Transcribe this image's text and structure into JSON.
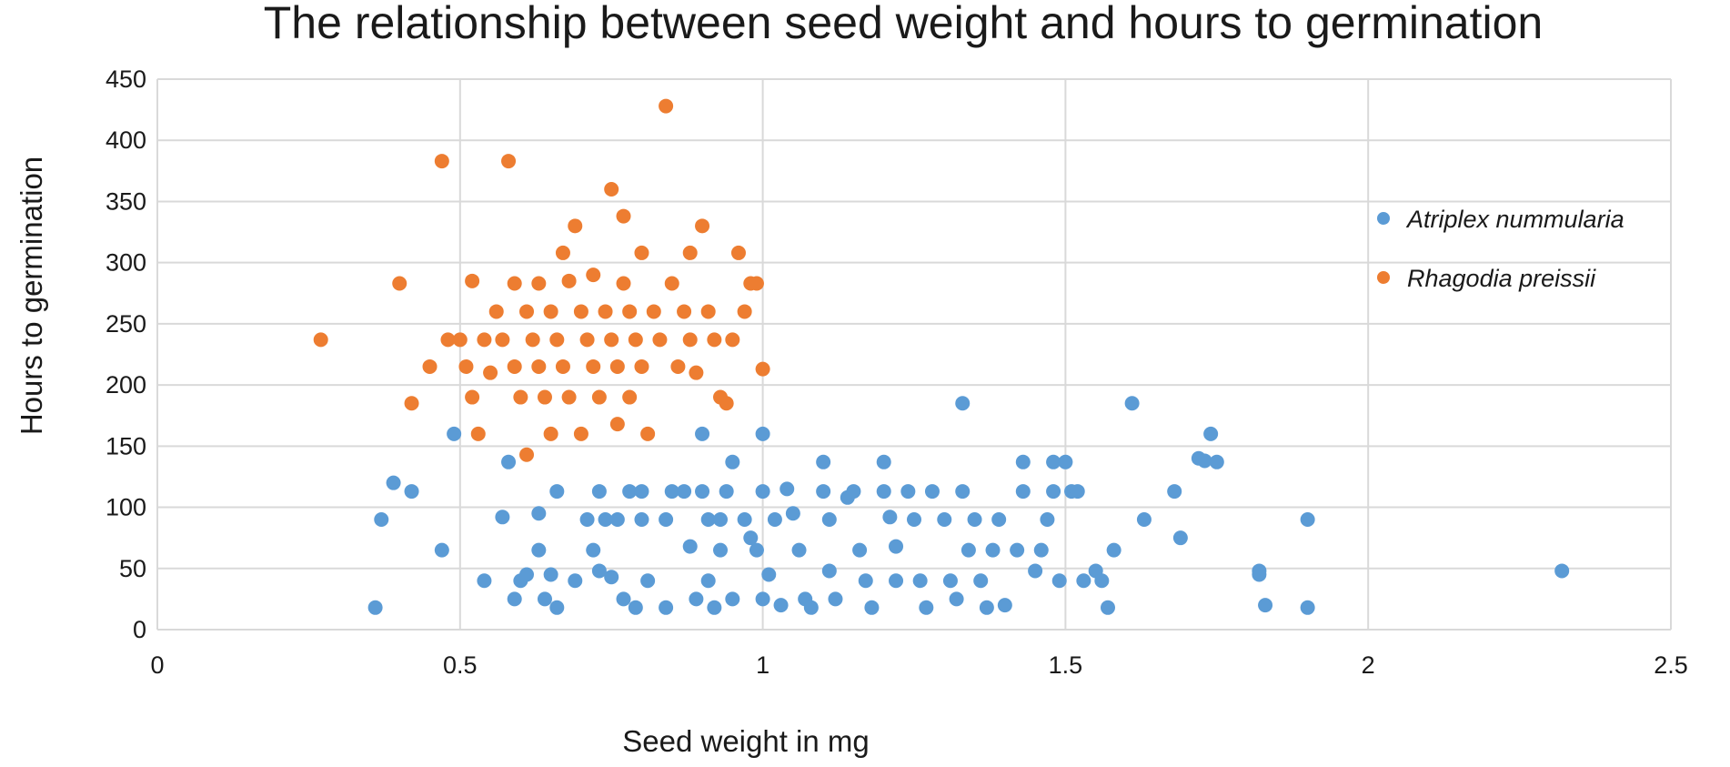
{
  "chart_data": {
    "type": "scatter",
    "title": "The relationship between seed weight and hours to germination",
    "xlabel": "Seed weight in mg",
    "ylabel": "Hours to germination",
    "xlim": [
      0,
      2.5
    ],
    "ylim": [
      0,
      450
    ],
    "x_ticks": [
      "0",
      "0.5",
      "1",
      "1.5",
      "2",
      "2.5"
    ],
    "y_ticks": [
      "0",
      "50",
      "100",
      "150",
      "200",
      "250",
      "300",
      "350",
      "400",
      "450"
    ],
    "grid": true,
    "legend_position": "right",
    "series": [
      {
        "name": "Atriplex nummularia",
        "color": "#5b9bd5",
        "points": [
          [
            0.36,
            18
          ],
          [
            0.37,
            90
          ],
          [
            0.39,
            120
          ],
          [
            0.42,
            113
          ],
          [
            0.47,
            65
          ],
          [
            0.49,
            160
          ],
          [
            0.54,
            40
          ],
          [
            0.57,
            92
          ],
          [
            0.58,
            137
          ],
          [
            0.59,
            25
          ],
          [
            0.6,
            40
          ],
          [
            0.61,
            45
          ],
          [
            0.63,
            95
          ],
          [
            0.63,
            65
          ],
          [
            0.64,
            25
          ],
          [
            0.65,
            45
          ],
          [
            0.66,
            18
          ],
          [
            0.66,
            113
          ],
          [
            0.69,
            40
          ],
          [
            0.71,
            90
          ],
          [
            0.72,
            65
          ],
          [
            0.73,
            113
          ],
          [
            0.73,
            48
          ],
          [
            0.74,
            90
          ],
          [
            0.75,
            43
          ],
          [
            0.76,
            90
          ],
          [
            0.77,
            25
          ],
          [
            0.78,
            113
          ],
          [
            0.79,
            18
          ],
          [
            0.8,
            113
          ],
          [
            0.8,
            90
          ],
          [
            0.81,
            40
          ],
          [
            0.84,
            90
          ],
          [
            0.84,
            18
          ],
          [
            0.85,
            113
          ],
          [
            0.87,
            113
          ],
          [
            0.88,
            68
          ],
          [
            0.89,
            25
          ],
          [
            0.9,
            160
          ],
          [
            0.9,
            113
          ],
          [
            0.91,
            90
          ],
          [
            0.91,
            40
          ],
          [
            0.92,
            18
          ],
          [
            0.93,
            90
          ],
          [
            0.93,
            65
          ],
          [
            0.94,
            113
          ],
          [
            0.95,
            137
          ],
          [
            0.95,
            25
          ],
          [
            0.97,
            90
          ],
          [
            0.98,
            75
          ],
          [
            0.99,
            65
          ],
          [
            1.0,
            160
          ],
          [
            1.0,
            113
          ],
          [
            1.0,
            25
          ],
          [
            1.01,
            45
          ],
          [
            1.02,
            90
          ],
          [
            1.03,
            20
          ],
          [
            1.04,
            115
          ],
          [
            1.05,
            95
          ],
          [
            1.06,
            65
          ],
          [
            1.07,
            25
          ],
          [
            1.08,
            18
          ],
          [
            1.1,
            137
          ],
          [
            1.1,
            113
          ],
          [
            1.11,
            90
          ],
          [
            1.11,
            48
          ],
          [
            1.12,
            25
          ],
          [
            1.14,
            108
          ],
          [
            1.15,
            113
          ],
          [
            1.16,
            65
          ],
          [
            1.17,
            40
          ],
          [
            1.18,
            18
          ],
          [
            1.2,
            137
          ],
          [
            1.2,
            113
          ],
          [
            1.21,
            92
          ],
          [
            1.22,
            68
          ],
          [
            1.22,
            40
          ],
          [
            1.24,
            113
          ],
          [
            1.25,
            90
          ],
          [
            1.26,
            40
          ],
          [
            1.27,
            18
          ],
          [
            1.28,
            113
          ],
          [
            1.3,
            90
          ],
          [
            1.31,
            40
          ],
          [
            1.32,
            25
          ],
          [
            1.33,
            185
          ],
          [
            1.33,
            113
          ],
          [
            1.34,
            65
          ],
          [
            1.35,
            90
          ],
          [
            1.36,
            40
          ],
          [
            1.37,
            18
          ],
          [
            1.38,
            65
          ],
          [
            1.39,
            90
          ],
          [
            1.4,
            20
          ],
          [
            1.42,
            65
          ],
          [
            1.43,
            137
          ],
          [
            1.43,
            113
          ],
          [
            1.45,
            48
          ],
          [
            1.46,
            65
          ],
          [
            1.47,
            90
          ],
          [
            1.48,
            137
          ],
          [
            1.48,
            113
          ],
          [
            1.49,
            40
          ],
          [
            1.5,
            137
          ],
          [
            1.51,
            113
          ],
          [
            1.52,
            113
          ],
          [
            1.53,
            40
          ],
          [
            1.55,
            48
          ],
          [
            1.56,
            40
          ],
          [
            1.57,
            18
          ],
          [
            1.58,
            65
          ],
          [
            1.61,
            185
          ],
          [
            1.63,
            90
          ],
          [
            1.68,
            113
          ],
          [
            1.69,
            75
          ],
          [
            1.72,
            140
          ],
          [
            1.73,
            138
          ],
          [
            1.74,
            160
          ],
          [
            1.75,
            137
          ],
          [
            1.82,
            45
          ],
          [
            1.82,
            48
          ],
          [
            1.83,
            20
          ],
          [
            1.9,
            18
          ],
          [
            1.9,
            90
          ],
          [
            2.32,
            48
          ]
        ]
      },
      {
        "name": "Rhagodia preissii",
        "color": "#ed7d31",
        "points": [
          [
            0.27,
            237
          ],
          [
            0.4,
            283
          ],
          [
            0.42,
            185
          ],
          [
            0.45,
            215
          ],
          [
            0.47,
            383
          ],
          [
            0.48,
            237
          ],
          [
            0.5,
            237
          ],
          [
            0.51,
            215
          ],
          [
            0.52,
            190
          ],
          [
            0.52,
            285
          ],
          [
            0.53,
            160
          ],
          [
            0.54,
            237
          ],
          [
            0.55,
            210
          ],
          [
            0.56,
            260
          ],
          [
            0.57,
            237
          ],
          [
            0.58,
            383
          ],
          [
            0.59,
            283
          ],
          [
            0.59,
            215
          ],
          [
            0.6,
            190
          ],
          [
            0.61,
            143
          ],
          [
            0.61,
            260
          ],
          [
            0.62,
            237
          ],
          [
            0.63,
            283
          ],
          [
            0.63,
            215
          ],
          [
            0.64,
            190
          ],
          [
            0.65,
            260
          ],
          [
            0.65,
            160
          ],
          [
            0.66,
            237
          ],
          [
            0.67,
            308
          ],
          [
            0.67,
            215
          ],
          [
            0.68,
            285
          ],
          [
            0.68,
            190
          ],
          [
            0.69,
            330
          ],
          [
            0.7,
            260
          ],
          [
            0.7,
            160
          ],
          [
            0.71,
            237
          ],
          [
            0.72,
            215
          ],
          [
            0.72,
            290
          ],
          [
            0.73,
            190
          ],
          [
            0.74,
            260
          ],
          [
            0.75,
            237
          ],
          [
            0.75,
            360
          ],
          [
            0.76,
            215
          ],
          [
            0.76,
            168
          ],
          [
            0.77,
            338
          ],
          [
            0.77,
            283
          ],
          [
            0.78,
            190
          ],
          [
            0.78,
            260
          ],
          [
            0.79,
            237
          ],
          [
            0.8,
            215
          ],
          [
            0.8,
            308
          ],
          [
            0.81,
            160
          ],
          [
            0.82,
            260
          ],
          [
            0.83,
            237
          ],
          [
            0.84,
            428
          ],
          [
            0.85,
            283
          ],
          [
            0.86,
            215
          ],
          [
            0.87,
            260
          ],
          [
            0.88,
            237
          ],
          [
            0.88,
            308
          ],
          [
            0.89,
            210
          ],
          [
            0.9,
            330
          ],
          [
            0.91,
            260
          ],
          [
            0.92,
            237
          ],
          [
            0.93,
            190
          ],
          [
            0.94,
            185
          ],
          [
            0.95,
            237
          ],
          [
            0.96,
            308
          ],
          [
            0.97,
            260
          ],
          [
            0.98,
            283
          ],
          [
            0.99,
            283
          ],
          [
            1.0,
            213
          ]
        ]
      }
    ]
  }
}
